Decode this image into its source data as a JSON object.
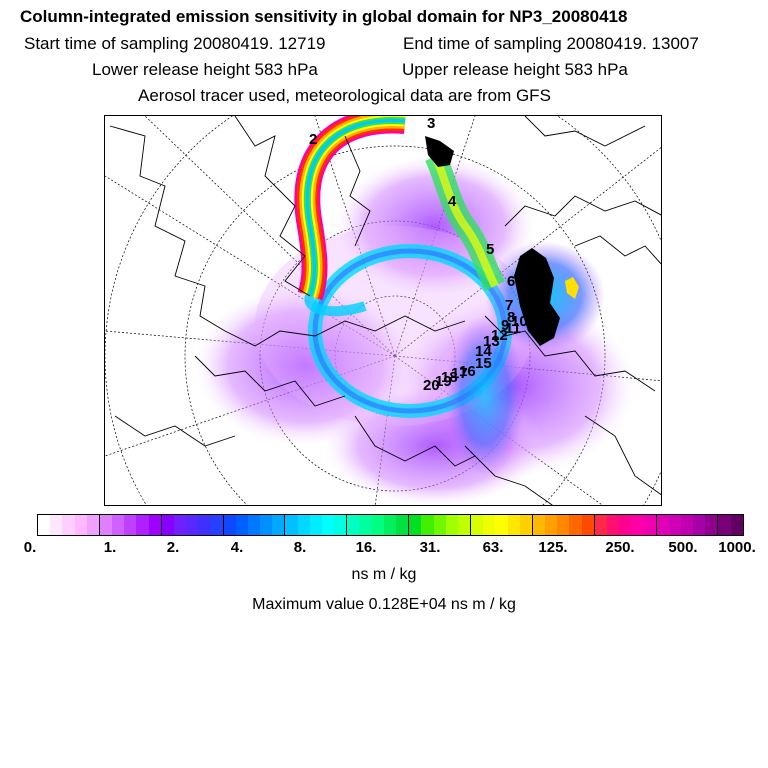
{
  "title": "Column-integrated emission sensitivity in global domain for NP3_20080418",
  "start_time": "Start time of sampling 20080419. 12719",
  "end_time": "End time of sampling 20080419. 13007",
  "lower_release": "Lower release height  583 hPa",
  "upper_release": "Upper release height  583 hPa",
  "tracer_note": "Aerosol tracer used, meteorological data are from GFS",
  "map": {
    "trajectory_labels": [
      "2",
      "3",
      "4",
      "5",
      "6",
      "7",
      "8",
      "9",
      "10",
      "11",
      "12",
      "13",
      "14",
      "15",
      "16",
      "17",
      "18",
      "19",
      "20"
    ]
  },
  "colorbar": {
    "tick_labels": [
      "0.",
      "1.",
      "2.",
      "4.",
      "8.",
      "16.",
      "31.",
      "63.",
      "125.",
      "250.",
      "500.",
      "1000."
    ],
    "colors": [
      "#ffffff",
      "#ffe8ff",
      "#ffd0ff",
      "#ffb8ff",
      "#f0a0ff",
      "#e080ff",
      "#d060ff",
      "#c040ff",
      "#b020ff",
      "#a000ff",
      "#8800ff",
      "#7020ff",
      "#5828ff",
      "#4030ff",
      "#2840ff",
      "#1048ff",
      "#0060ff",
      "#0078ff",
      "#0090ff",
      "#00a8ff",
      "#00c0ff",
      "#00d8ff",
      "#00ecff",
      "#00ffff",
      "#00ffe0",
      "#00ffc0",
      "#00ffa0",
      "#00ff80",
      "#00f060",
      "#00e040",
      "#00e020",
      "#40f000",
      "#70f800",
      "#a0ff00",
      "#c0ff00",
      "#d8ff00",
      "#f0ff00",
      "#ffff00",
      "#ffe800",
      "#ffd000",
      "#ffb800",
      "#ffa000",
      "#ff8800",
      "#ff6800",
      "#ff4800",
      "#ff2848",
      "#ff1070",
      "#ff0090",
      "#ff00a8",
      "#f000b0",
      "#e000b8",
      "#d000b8",
      "#c000b0",
      "#a800a8",
      "#900090",
      "#780078",
      "#600060"
    ],
    "unit": "ns m / kg"
  },
  "max_value": "Maximum value  0.128E+04 ns m / kg"
}
